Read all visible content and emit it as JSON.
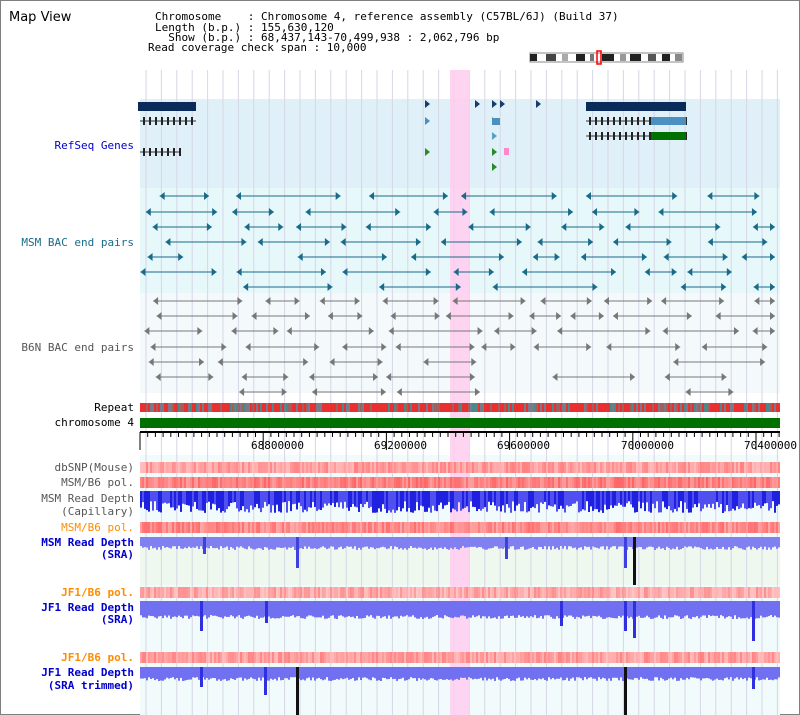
{
  "page": {
    "title": "Map View"
  },
  "header": {
    "chromosome_line": "Chromosome    : Chromosome 4, reference assembly (C57BL/6J) (Build 37)",
    "length_line": "Length (b.p.) : 155,630,120",
    "show_line": "  Show (b.p.) : 68,437,143-70,499,938 : 2,062,796 bp",
    "coverage_line": "Read coverage check span : 10,000"
  },
  "tracks": {
    "refseq": "RefSeq Genes",
    "msm_bac": "MSM BAC end pairs",
    "b6n_bac": "B6N BAC end pairs",
    "repeat": "Repeat",
    "chromosome": "chromosome 4",
    "dbsnp": "dbSNP(Mouse)",
    "msm_b6_pol_1": "MSM/B6 pol.",
    "msm_read_depth_cap_1": "MSM Read Depth",
    "msm_read_depth_cap_2": "(Capillary)",
    "msm_b6_pol_2": "MSM/B6 pol.",
    "msm_read_depth_sra_1": "MSM Read Depth",
    "msm_read_depth_sra_2": "(SRA)",
    "jf1_b6_pol_1": "JF1/B6 pol.",
    "jf1_read_depth_sra_1": "JF1 Read Depth",
    "jf1_read_depth_sra_2": "(SRA)",
    "jf1_b6_pol_2": "JF1/B6 pol.",
    "jf1_read_depth_trim_1": "JF1 Read Depth",
    "jf1_read_depth_trim_2": "(SRA trimmed)"
  },
  "ruler": {
    "ticks": [
      "68800000",
      "69200000",
      "69600000",
      "70000000",
      "70400000"
    ]
  },
  "colors": {
    "refseq_label": "#0000cc",
    "msm_label": "#1a6a8a",
    "b6n_label": "#555555",
    "pol_label_orange": "#ff8c00",
    "depth_label_blue": "#0000cc",
    "refseq_bg": "#e0f0f8",
    "msm_bg": "#e6f8fa",
    "highlight": "#ffccee",
    "chromosome_bar": "#007000",
    "repeat_red": "#e83030"
  }
}
